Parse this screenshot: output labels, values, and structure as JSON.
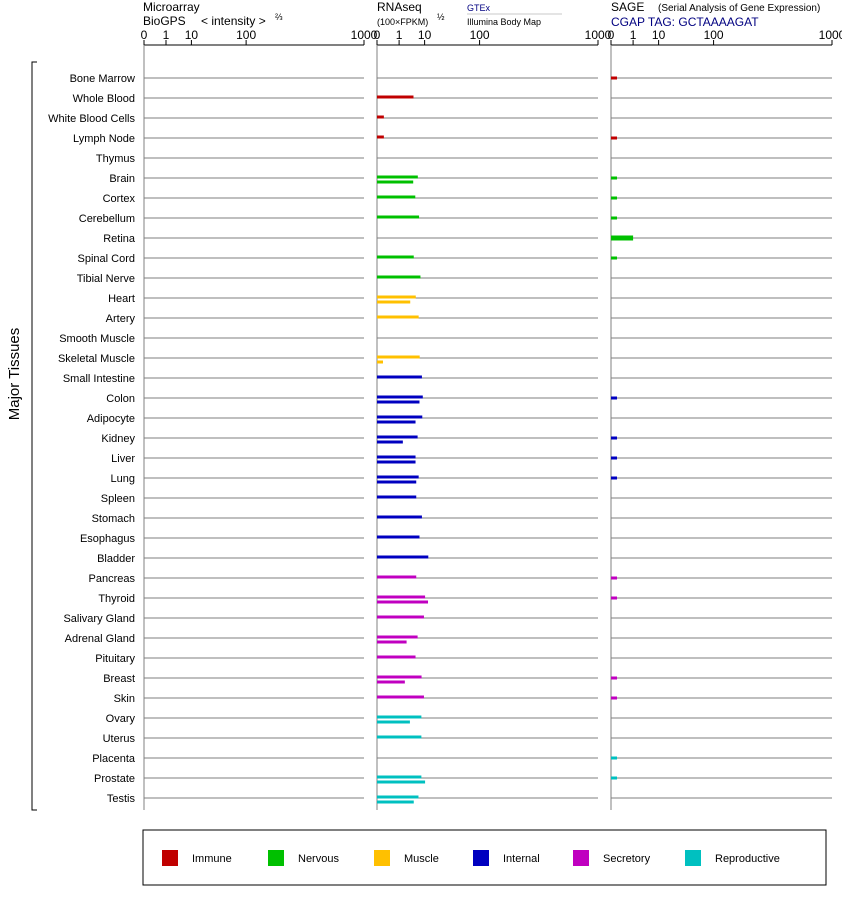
{
  "chart_data": {
    "type": "bar",
    "ylabel": "Major Tissues",
    "color_groups": [
      {
        "name": "Immune",
        "color": "#c00000"
      },
      {
        "name": "Nervous",
        "color": "#00c000"
      },
      {
        "name": "Muscle",
        "color": "#ffc000"
      },
      {
        "name": "Internal",
        "color": "#0000c0"
      },
      {
        "name": "Secretory",
        "color": "#c000c0"
      },
      {
        "name": "Reproductive",
        "color": "#00c0c0"
      }
    ],
    "tissues": [
      {
        "name": "Bone Marrow",
        "group": 0,
        "rnaseq": [],
        "sage": 0.02
      },
      {
        "name": "Whole Blood",
        "group": 0,
        "rnaseq": [
          4.5
        ],
        "sage": null
      },
      {
        "name": "White Blood Cells",
        "group": 0,
        "rnaseq": [
          0.03
        ],
        "sage": null
      },
      {
        "name": "Lymph Node",
        "group": 0,
        "rnaseq": [
          0.03
        ],
        "sage": 0.02
      },
      {
        "name": "Thymus",
        "group": 0,
        "rnaseq": [],
        "sage": null
      },
      {
        "name": "Brain",
        "group": 1,
        "rnaseq": [
          6.3,
          4.4
        ],
        "sage": 0.02
      },
      {
        "name": "Cortex",
        "group": 1,
        "rnaseq": [
          5.2
        ],
        "sage": 0.02
      },
      {
        "name": "Cerebellum",
        "group": 1,
        "rnaseq": [
          6.9
        ],
        "sage": 0.02
      },
      {
        "name": "Retina",
        "group": 1,
        "rnaseq": [],
        "sage": 1.0
      },
      {
        "name": "Spinal Cord",
        "group": 1,
        "rnaseq": [
          4.6
        ],
        "sage": 0.02
      },
      {
        "name": "Tibial Nerve",
        "group": 1,
        "rnaseq": [
          7.6
        ],
        "sage": null
      },
      {
        "name": "Heart",
        "group": 2,
        "rnaseq": [
          5.4,
          3.4
        ],
        "sage": null
      },
      {
        "name": "Artery",
        "group": 2,
        "rnaseq": [
          6.7
        ],
        "sage": null
      },
      {
        "name": "Smooth Muscle",
        "group": 2,
        "rnaseq": [],
        "sage": null
      },
      {
        "name": "Skeletal Muscle",
        "group": 2,
        "rnaseq": [
          7.2,
          0.02
        ],
        "sage": null
      },
      {
        "name": "Small Intestine",
        "group": 3,
        "rnaseq": [
          8.4
        ],
        "sage": null
      },
      {
        "name": "Colon",
        "group": 3,
        "rnaseq": [
          8.9,
          7.1
        ],
        "sage": 0.02
      },
      {
        "name": "Adipocyte",
        "group": 3,
        "rnaseq": [
          8.6,
          5.3
        ],
        "sage": null
      },
      {
        "name": "Kidney",
        "group": 3,
        "rnaseq": [
          6.2,
          1.6
        ],
        "sage": 0.02
      },
      {
        "name": "Liver",
        "group": 3,
        "rnaseq": [
          5.3,
          5.3
        ],
        "sage": 0.02
      },
      {
        "name": "Lung",
        "group": 3,
        "rnaseq": [
          6.7,
          5.6
        ],
        "sage": 0.02
      },
      {
        "name": "Spleen",
        "group": 3,
        "rnaseq": [
          5.6
        ],
        "sage": null
      },
      {
        "name": "Stomach",
        "group": 3,
        "rnaseq": [
          8.4
        ],
        "sage": null
      },
      {
        "name": "Esophagus",
        "group": 3,
        "rnaseq": [
          7.1
        ],
        "sage": null
      },
      {
        "name": "Bladder",
        "group": 3,
        "rnaseq": [
          12.5
        ],
        "sage": null
      },
      {
        "name": "Pancreas",
        "group": 4,
        "rnaseq": [
          5.6
        ],
        "sage": 0.02
      },
      {
        "name": "Thyroid",
        "group": 4,
        "rnaseq": [
          10.3,
          12.3
        ],
        "sage": 0.02
      },
      {
        "name": "Salivary Gland",
        "group": 4,
        "rnaseq": [
          9.6
        ],
        "sage": null
      },
      {
        "name": "Adrenal Gland",
        "group": 4,
        "rnaseq": [
          6.2,
          2.4
        ],
        "sage": null
      },
      {
        "name": "Pituitary",
        "group": 4,
        "rnaseq": [
          5.3
        ],
        "sage": null
      },
      {
        "name": "Breast",
        "group": 4,
        "rnaseq": [
          8.2,
          2.0
        ],
        "sage": 0.02
      },
      {
        "name": "Skin",
        "group": 4,
        "rnaseq": [
          9.6
        ],
        "sage": 0.02
      },
      {
        "name": "Ovary",
        "group": 5,
        "rnaseq": [
          8.1,
          3.3
        ],
        "sage": null
      },
      {
        "name": "Uterus",
        "group": 5,
        "rnaseq": [
          8.1
        ],
        "sage": null
      },
      {
        "name": "Placenta",
        "group": 5,
        "rnaseq": [],
        "sage": 0.02
      },
      {
        "name": "Prostate",
        "group": 5,
        "rnaseq": [
          8.1,
          10.3
        ],
        "sage": 0.02
      },
      {
        "name": "Testis",
        "group": 5,
        "rnaseq": [
          6.6,
          4.6
        ],
        "sage": null
      }
    ],
    "panels": {
      "microarray": {
        "title1": "Microarray",
        "title2": "BioGPS",
        "scale_label": "< intensity >",
        "scale_exp": "⅔"
      },
      "rnaseq": {
        "title1": "RNAseq",
        "scale_label": "(100×FPKM)",
        "scale_exp": "½",
        "legend_top": "GTEx",
        "legend_bottom": "Illumina Body Map"
      },
      "sage": {
        "title1": "SAGE",
        "subtitle": "(Serial Analysis of Gene Expression)",
        "tag_label": "CGAP TAG: GCTAAAAGAT"
      }
    },
    "ticks": [
      "0",
      "1",
      "10",
      "100",
      "1000"
    ],
    "xlim": [
      0,
      1000
    ]
  }
}
